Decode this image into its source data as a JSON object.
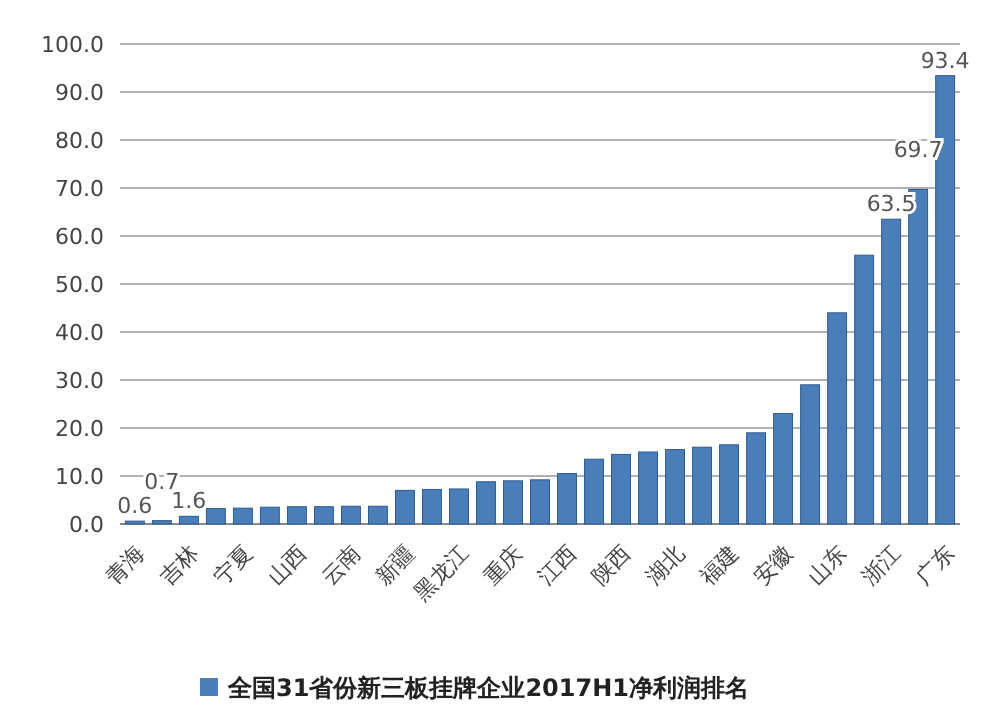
{
  "chart_data": {
    "type": "bar",
    "categories": [
      "青海",
      null,
      "吉林",
      null,
      "宁夏",
      null,
      "山西",
      null,
      "云南",
      null,
      "新疆",
      null,
      "黑龙江",
      null,
      "重庆",
      null,
      "江西",
      null,
      "陕西",
      null,
      "湖北",
      null,
      "福建",
      null,
      "安徽",
      null,
      "山东",
      null,
      "浙江",
      null,
      "广东"
    ],
    "series": [
      {
        "name": "全国31省份新三板挂牌企业2017H1净利润排名",
        "color": "#4a7ebb",
        "values": [
          0.6,
          0.7,
          1.6,
          3.2,
          3.3,
          3.5,
          3.6,
          3.6,
          3.7,
          3.7,
          7,
          7.2,
          7.3,
          8.8,
          9,
          9.2,
          10.5,
          13.5,
          14.5,
          15,
          15.5,
          16,
          16.5,
          19,
          23,
          29,
          44,
          56,
          63.5,
          69.7,
          93.4
        ],
        "value_labels": [
          "0.6",
          "0.7",
          "1.6",
          null,
          null,
          null,
          null,
          null,
          null,
          null,
          null,
          null,
          null,
          null,
          null,
          null,
          null,
          null,
          null,
          null,
          null,
          null,
          null,
          null,
          null,
          null,
          null,
          null,
          "63.5",
          "69.7",
          "93.4"
        ]
      }
    ],
    "ylim": [
      0,
      100
    ],
    "yticks": [
      {
        "value": 0,
        "label": "0.0"
      },
      {
        "value": 10,
        "label": "10.0"
      },
      {
        "value": 20,
        "label": "20.0"
      },
      {
        "value": 30,
        "label": "30.0"
      },
      {
        "value": 40,
        "label": "40.0"
      },
      {
        "value": 50,
        "label": "50.0"
      },
      {
        "value": 60,
        "label": "60.0"
      },
      {
        "value": 70,
        "label": "70.0"
      },
      {
        "value": 80,
        "label": "80.0"
      },
      {
        "value": 90,
        "label": "90.0"
      },
      {
        "value": 100,
        "label": "100.0"
      }
    ],
    "grid": true,
    "legend": "bottom"
  }
}
